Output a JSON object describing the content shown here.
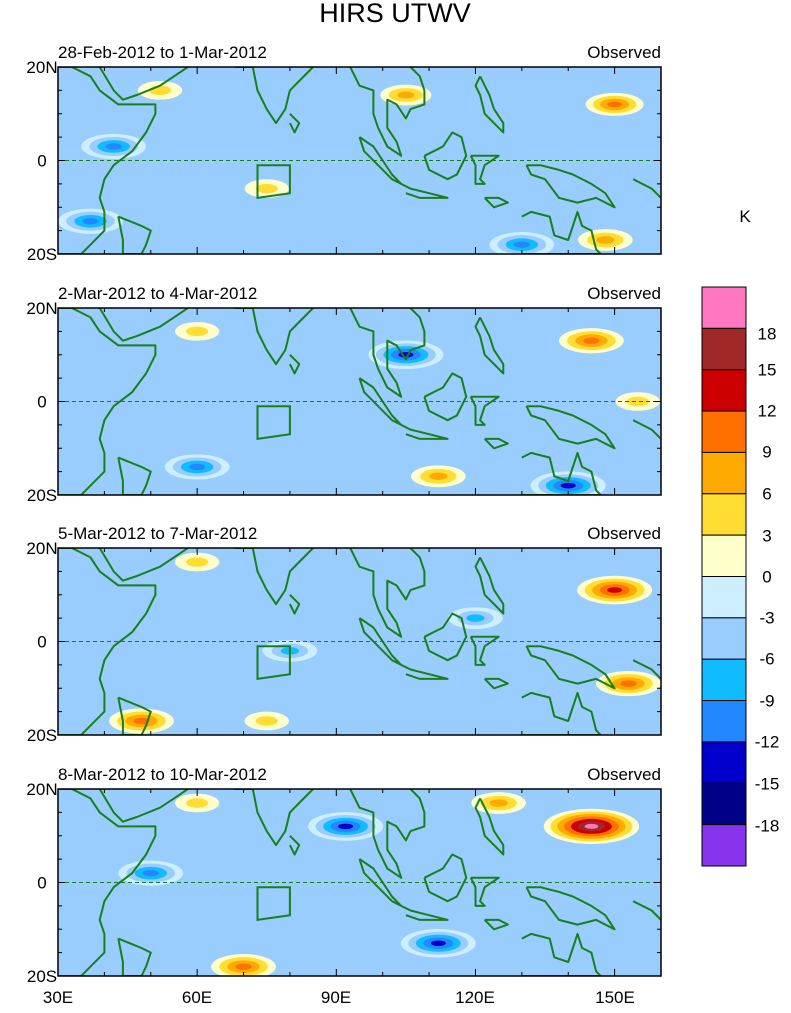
{
  "chart_data": {
    "type": "heatmap",
    "title": "HIRS UTWV",
    "units": "K",
    "x_ticks": [
      "30E",
      "60E",
      "90E",
      "120E",
      "150E"
    ],
    "x_tick_values": [
      30,
      60,
      90,
      120,
      150
    ],
    "y_ticks": [
      "20N",
      "0",
      "20S"
    ],
    "y_tick_values": [
      20,
      0,
      -20
    ],
    "xlim": [
      30,
      160
    ],
    "ylim": [
      -20,
      20
    ],
    "colorbar": {
      "labels": [
        "18",
        "15",
        "12",
        "9",
        "6",
        "3",
        "0",
        "-3",
        "-6",
        "-9",
        "-12",
        "-15",
        "-18"
      ],
      "levels": [
        18,
        15,
        12,
        9,
        6,
        3,
        0,
        -3,
        -6,
        -9,
        -12,
        -15,
        -18
      ],
      "colors": [
        "#ff77c0",
        "#a02828",
        "#cc0000",
        "#ff7000",
        "#ffaa00",
        "#ffdd33",
        "#ffffcc",
        "#cceeff",
        "#99ccff",
        "#11bbff",
        "#2288ff",
        "#0000cc",
        "#000088",
        "#8833ee"
      ]
    },
    "panels": [
      {
        "period": "28-Feb-2012 to 1-Mar-2012",
        "label": "Observed",
        "features": [
          {
            "lon": 75,
            "lat": -6,
            "value": 6
          },
          {
            "lon": 150,
            "lat": 12,
            "value": 10
          },
          {
            "lon": 105,
            "lat": 14,
            "value": 8
          },
          {
            "lon": 42,
            "lat": 3,
            "value": -12
          },
          {
            "lon": 37,
            "lat": -13,
            "value": -12
          },
          {
            "lon": 130,
            "lat": -18,
            "value": -12
          },
          {
            "lon": 52,
            "lat": 15,
            "value": 6
          },
          {
            "lon": 148,
            "lat": -17,
            "value": 9
          }
        ]
      },
      {
        "period": "2-Mar-2012 to 4-Mar-2012",
        "label": "Observed",
        "features": [
          {
            "lon": 60,
            "lat": 15,
            "value": 6
          },
          {
            "lon": 145,
            "lat": 13,
            "value": 12
          },
          {
            "lon": 105,
            "lat": 10,
            "value": -15
          },
          {
            "lon": 112,
            "lat": -16,
            "value": 9
          },
          {
            "lon": 140,
            "lat": -18,
            "value": -15
          },
          {
            "lon": 60,
            "lat": -14,
            "value": -12
          },
          {
            "lon": 155,
            "lat": 0,
            "value": 6
          }
        ]
      },
      {
        "period": "5-Mar-2012 to 7-Mar-2012",
        "label": "Observed",
        "features": [
          {
            "lon": 60,
            "lat": 17,
            "value": 6
          },
          {
            "lon": 150,
            "lat": 11,
            "value": 15
          },
          {
            "lon": 48,
            "lat": -17,
            "value": 12
          },
          {
            "lon": 153,
            "lat": -9,
            "value": 12
          },
          {
            "lon": 80,
            "lat": -2,
            "value": -9
          },
          {
            "lon": 120,
            "lat": 5,
            "value": -9
          },
          {
            "lon": 75,
            "lat": -17,
            "value": 6
          }
        ]
      },
      {
        "period": "8-Mar-2012 to 10-Mar-2012",
        "label": "Observed",
        "features": [
          {
            "lon": 145,
            "lat": 12,
            "value": 21
          },
          {
            "lon": 125,
            "lat": 17,
            "value": 9
          },
          {
            "lon": 92,
            "lat": 12,
            "value": -15
          },
          {
            "lon": 50,
            "lat": 2,
            "value": -12
          },
          {
            "lon": 70,
            "lat": -18,
            "value": 12
          },
          {
            "lon": 112,
            "lat": -13,
            "value": -15
          },
          {
            "lon": 60,
            "lat": 17,
            "value": 6
          }
        ]
      }
    ]
  }
}
